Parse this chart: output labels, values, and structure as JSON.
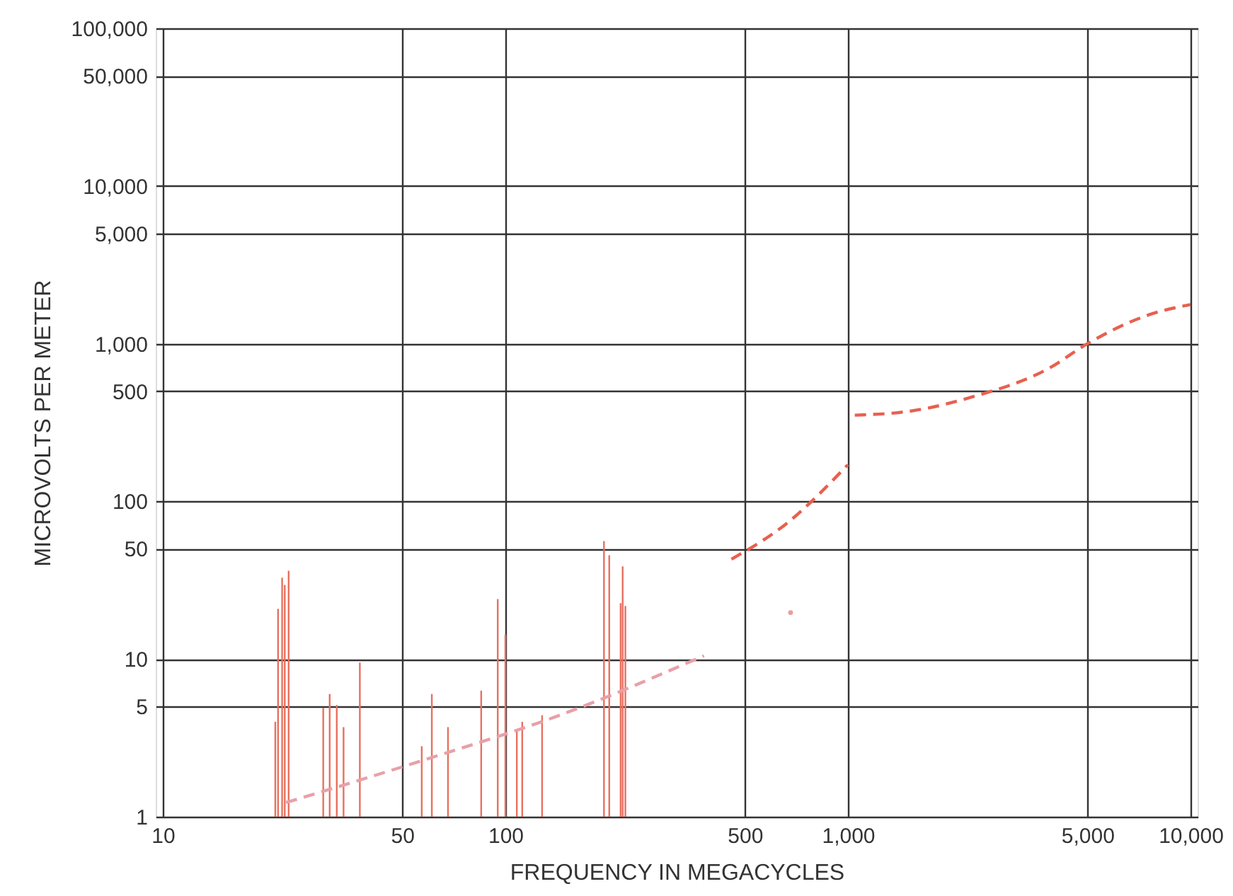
{
  "chart_data": {
    "type": "line",
    "xlabel": "FREQUENCY IN MEGACYCLES",
    "ylabel": "MICROVOLTS PER METER",
    "log": "xy",
    "grid": true,
    "xlim": [
      10,
      10000
    ],
    "ylim": [
      1,
      100000
    ],
    "xticks": [
      10,
      50,
      100,
      500,
      {
        "value": 1000,
        "label": "1,000"
      },
      {
        "value": 5000,
        "label": "5,000"
      },
      {
        "value": 10000,
        "label": "10,000"
      }
    ],
    "yticks": [
      1,
      5,
      10,
      50,
      100,
      500,
      {
        "value": 1000,
        "label": "1,000"
      },
      {
        "value": 5000,
        "label": "5,000"
      },
      {
        "value": 10000,
        "label": "10,000"
      },
      {
        "value": 50000,
        "label": "50,000"
      },
      {
        "value": 100000,
        "label": "100,000"
      }
    ],
    "series": [
      {
        "type": "bar",
        "color": "#e8705f",
        "x": [
          21.3,
          21.7,
          22.3,
          22.7,
          23.3,
          29.4,
          30.7,
          32.2,
          33.7,
          37.6,
          57,
          61,
          68,
          85,
          95,
          100,
          108,
          112,
          128,
          194,
          201,
          217,
          220,
          224
        ],
        "values": [
          4.0,
          20.8,
          32.8,
          29.5,
          36.3,
          4.9,
          6.0,
          5.1,
          3.7,
          9.5,
          2.8,
          6.0,
          3.7,
          6.3,
          24,
          14.3,
          3.5,
          4.0,
          4.4,
          56,
          45.6,
          22.6,
          38.7,
          21.7
        ]
      },
      {
        "line_style": "dashed",
        "color": "#e8a0a8",
        "x": [
          22.9,
          57.5,
          144,
          380
        ],
        "values": [
          1.23,
          2.28,
          4.4,
          10.5
        ]
      },
      {
        "line_style": "dashed",
        "color": "#e8604f",
        "x": [
          457,
          660,
          1000
        ],
        "values": [
          43,
          72,
          171
        ]
      },
      {
        "line_style": "dashed",
        "color": "#e8604f",
        "x": [
          1047,
          1540,
          2310,
          3870,
          5000,
          7600,
          10000
        ],
        "values": [
          352,
          375,
          460,
          700,
          1000,
          1530,
          1770
        ]
      },
      {
        "type": "scatter",
        "color": "#e8706f",
        "x": [
          680
        ],
        "values": [
          19.7
        ]
      }
    ]
  }
}
